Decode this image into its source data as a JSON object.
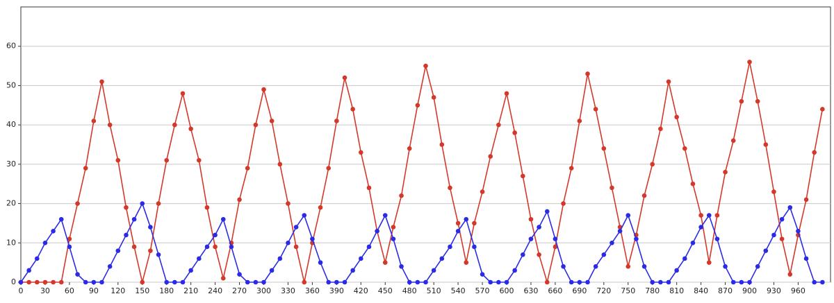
{
  "chart_data": {
    "type": "line",
    "x": [
      0,
      10,
      20,
      30,
      40,
      50,
      60,
      70,
      80,
      90,
      100,
      110,
      120,
      130,
      140,
      150,
      160,
      170,
      180,
      190,
      200,
      210,
      220,
      230,
      240,
      250,
      260,
      270,
      280,
      290,
      300,
      310,
      320,
      330,
      340,
      350,
      360,
      370,
      380,
      390,
      400,
      410,
      420,
      430,
      440,
      450,
      460,
      470,
      480,
      490,
      500,
      510,
      520,
      530,
      540,
      550,
      560,
      570,
      580,
      590,
      600,
      610,
      620,
      630,
      640,
      650,
      660,
      670,
      680,
      690,
      700,
      710,
      720,
      730,
      740,
      750,
      760,
      770,
      780,
      790,
      800,
      810,
      820,
      830,
      840,
      850,
      860,
      870,
      880,
      890,
      900,
      910,
      920,
      930,
      940,
      950,
      960,
      970,
      980,
      990
    ],
    "series": [
      {
        "name": "red",
        "color": "#d3382a",
        "values": [
          0,
          0,
          0,
          0,
          0,
          0,
          11,
          20,
          29,
          41,
          51,
          40,
          31,
          19,
          9,
          0,
          8,
          20,
          31,
          40,
          48,
          39,
          31,
          19,
          9,
          1,
          10,
          21,
          29,
          40,
          49,
          41,
          30,
          20,
          9,
          0,
          10,
          19,
          29,
          41,
          52,
          44,
          33,
          24,
          13,
          5,
          14,
          22,
          34,
          45,
          55,
          47,
          35,
          24,
          15,
          5,
          15,
          23,
          32,
          40,
          48,
          38,
          27,
          16,
          7,
          0,
          9,
          20,
          29,
          41,
          53,
          44,
          34,
          24,
          14,
          4,
          12,
          22,
          30,
          39,
          51,
          42,
          34,
          25,
          17,
          5,
          17,
          28,
          36,
          46,
          56,
          46,
          35,
          23,
          11,
          2,
          12,
          21,
          33,
          44
        ]
      },
      {
        "name": "blue",
        "color": "#2b2be6",
        "values": [
          0,
          3,
          6,
          10,
          13,
          16,
          9,
          2,
          0,
          0,
          0,
          4,
          8,
          12,
          16,
          20,
          14,
          7,
          0,
          0,
          0,
          3,
          6,
          9,
          12,
          16,
          9,
          2,
          0,
          0,
          0,
          3,
          6,
          10,
          14,
          17,
          11,
          5,
          0,
          0,
          0,
          3,
          6,
          9,
          13,
          17,
          11,
          4,
          0,
          0,
          0,
          3,
          6,
          9,
          13,
          16,
          9,
          2,
          0,
          0,
          0,
          3,
          7,
          11,
          14,
          18,
          11,
          4,
          0,
          0,
          0,
          4,
          7,
          10,
          13,
          17,
          11,
          4,
          0,
          0,
          0,
          3,
          6,
          10,
          14,
          17,
          11,
          4,
          0,
          0,
          0,
          4,
          8,
          12,
          16,
          19,
          13,
          6,
          0,
          0
        ]
      }
    ],
    "xlim": [
      0,
      1000
    ],
    "ylim": [
      0,
      70
    ],
    "xticks": [
      0,
      30,
      60,
      90,
      120,
      150,
      180,
      210,
      240,
      270,
      300,
      330,
      360,
      390,
      420,
      450,
      480,
      510,
      540,
      570,
      600,
      630,
      660,
      690,
      720,
      750,
      780,
      810,
      840,
      870,
      900,
      930,
      960
    ],
    "yticks": [
      0,
      10,
      20,
      30,
      40,
      50,
      60
    ],
    "grid": true
  }
}
